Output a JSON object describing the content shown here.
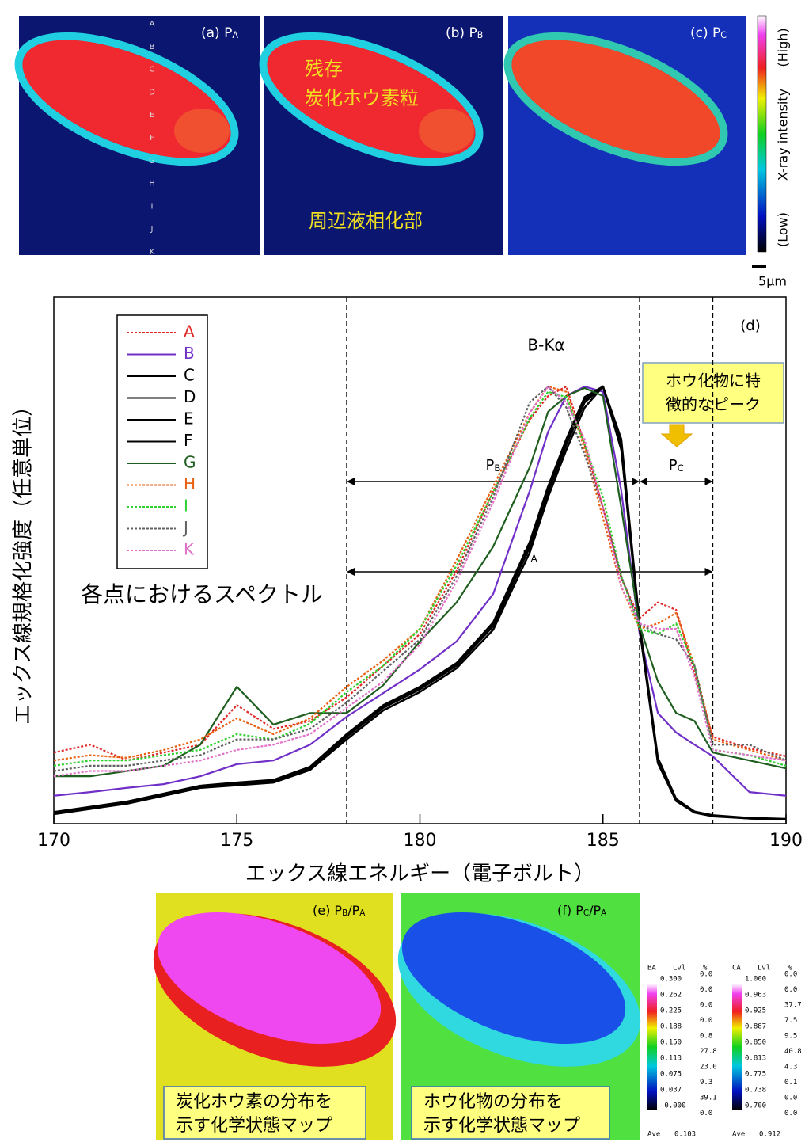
{
  "chart_data": {
    "type": "line",
    "xlabel": "エックス線エネルギー（電子ボルト）",
    "ylabel": "エックス線規格化強度（任意単位）",
    "panel_label": "(d)",
    "x": [
      170,
      171,
      172,
      173,
      174,
      175,
      176,
      177,
      178,
      179,
      180,
      181,
      182,
      183,
      183.5,
      184,
      184.5,
      185,
      185.5,
      186,
      186.5,
      187,
      187.5,
      188,
      189,
      190
    ],
    "xlim": [
      170,
      190
    ],
    "xticks": [
      170,
      175,
      180,
      185,
      190
    ],
    "ylim": [
      0,
      1
    ],
    "legend": "upper-left",
    "series": [
      {
        "name": "A",
        "color": "#e02828",
        "style": "dotted",
        "values": [
          0.135,
          0.15,
          0.12,
          0.135,
          0.15,
          0.225,
          0.18,
          0.195,
          0.24,
          0.3,
          0.36,
          0.48,
          0.63,
          0.767,
          0.812,
          0.83,
          0.72,
          0.6,
          0.466,
          0.39,
          0.42,
          0.406,
          0.286,
          0.165,
          0.143,
          0.128
        ]
      },
      {
        "name": "B",
        "color": "#7030c8",
        "style": "solid",
        "values": [
          0.053,
          0.06,
          0.068,
          0.075,
          0.09,
          0.113,
          0.12,
          0.15,
          0.203,
          0.248,
          0.293,
          0.346,
          0.436,
          0.632,
          0.744,
          0.812,
          0.83,
          0.82,
          0.632,
          0.361,
          0.21,
          0.173,
          0.15,
          0.128,
          0.06,
          0.053
        ]
      },
      {
        "name": "C",
        "color": "#000000",
        "style": "solid",
        "values": [
          0.02,
          0.03,
          0.04,
          0.055,
          0.07,
          0.075,
          0.08,
          0.105,
          0.165,
          0.22,
          0.255,
          0.3,
          0.375,
          0.525,
          0.63,
          0.72,
          0.8,
          0.83,
          0.72,
          0.375,
          0.12,
          0.045,
          0.022,
          0.015,
          0.01,
          0.008
        ]
      },
      {
        "name": "D",
        "color": "#000000",
        "style": "solid",
        "values": [
          0.022,
          0.032,
          0.042,
          0.057,
          0.072,
          0.078,
          0.083,
          0.108,
          0.17,
          0.225,
          0.26,
          0.305,
          0.382,
          0.535,
          0.64,
          0.73,
          0.81,
          0.83,
          0.71,
          0.37,
          0.115,
          0.043,
          0.021,
          0.014,
          0.01,
          0.008
        ]
      },
      {
        "name": "E",
        "color": "#000000",
        "style": "solid",
        "values": [
          0.018,
          0.028,
          0.038,
          0.053,
          0.068,
          0.073,
          0.078,
          0.102,
          0.16,
          0.215,
          0.25,
          0.295,
          0.368,
          0.515,
          0.62,
          0.71,
          0.79,
          0.83,
          0.73,
          0.38,
          0.125,
          0.047,
          0.023,
          0.016,
          0.011,
          0.009
        ]
      },
      {
        "name": "F",
        "color": "#000000",
        "style": "solid",
        "values": [
          0.021,
          0.031,
          0.041,
          0.056,
          0.071,
          0.076,
          0.081,
          0.106,
          0.167,
          0.222,
          0.257,
          0.302,
          0.378,
          0.53,
          0.635,
          0.725,
          0.805,
          0.83,
          0.715,
          0.372,
          0.118,
          0.044,
          0.022,
          0.015,
          0.01,
          0.008
        ]
      },
      {
        "name": "G",
        "color": "#1e5e1e",
        "style": "solid",
        "values": [
          0.09,
          0.09,
          0.1,
          0.11,
          0.15,
          0.26,
          0.188,
          0.21,
          0.21,
          0.263,
          0.346,
          0.42,
          0.526,
          0.677,
          0.782,
          0.812,
          0.827,
          0.812,
          0.6,
          0.376,
          0.27,
          0.21,
          0.195,
          0.135,
          0.12,
          0.105
        ]
      },
      {
        "name": "H",
        "color": "#e86010",
        "style": "dotted",
        "values": [
          0.12,
          0.13,
          0.125,
          0.14,
          0.16,
          0.2,
          0.17,
          0.2,
          0.26,
          0.31,
          0.37,
          0.5,
          0.64,
          0.78,
          0.83,
          0.82,
          0.71,
          0.58,
          0.45,
          0.37,
          0.38,
          0.4,
          0.3,
          0.16,
          0.14,
          0.12
        ]
      },
      {
        "name": "I",
        "color": "#30d030",
        "style": "dotted",
        "values": [
          0.11,
          0.12,
          0.12,
          0.13,
          0.14,
          0.17,
          0.16,
          0.19,
          0.25,
          0.3,
          0.37,
          0.49,
          0.63,
          0.77,
          0.82,
          0.81,
          0.72,
          0.62,
          0.47,
          0.37,
          0.36,
          0.38,
          0.3,
          0.14,
          0.13,
          0.11
        ]
      },
      {
        "name": "J",
        "color": "#606060",
        "style": "dotted",
        "values": [
          0.1,
          0.11,
          0.11,
          0.12,
          0.13,
          0.16,
          0.16,
          0.18,
          0.23,
          0.29,
          0.35,
          0.47,
          0.62,
          0.8,
          0.83,
          0.79,
          0.7,
          0.6,
          0.47,
          0.38,
          0.36,
          0.35,
          0.3,
          0.15,
          0.15,
          0.12
        ]
      },
      {
        "name": "K",
        "color": "#e070c8",
        "style": "dotted",
        "values": [
          0.09,
          0.1,
          0.1,
          0.11,
          0.12,
          0.14,
          0.15,
          0.17,
          0.22,
          0.27,
          0.34,
          0.46,
          0.61,
          0.78,
          0.83,
          0.8,
          0.73,
          0.6,
          0.45,
          0.38,
          0.37,
          0.37,
          0.28,
          0.14,
          0.13,
          0.12
        ]
      }
    ],
    "annotations": {
      "peak": "B-Kα",
      "spectra": "各点におけるスペクトル",
      "callout": [
        "ホウ化物に特",
        "徴的なピーク"
      ]
    },
    "ranges": [
      {
        "name": "P",
        "sub": "B",
        "x": [
          178,
          186
        ]
      },
      {
        "name": "P",
        "sub": "C",
        "x": [
          186,
          188
        ]
      },
      {
        "name": "P",
        "sub": "A",
        "x": [
          178,
          188
        ]
      }
    ]
  },
  "top_maps": [
    {
      "tag": "(a) P",
      "sub": "A"
    },
    {
      "tag": "(b) P",
      "sub": "B"
    },
    {
      "tag": "(c) P",
      "sub": "C"
    }
  ],
  "points": [
    "A",
    "B",
    "C",
    "D",
    "E",
    "F",
    "G",
    "H",
    "I",
    "J",
    "K"
  ],
  "map_b_labels": [
    "残存",
    "炭化ホウ素粒",
    "周辺液相化部"
  ],
  "colorbar": {
    "high": "(High)",
    "title": "X-ray intensity",
    "low": "(Low)"
  },
  "scale_bar": "5μm",
  "ratio_maps": [
    {
      "tag": "(e) P",
      "sub1": "B",
      "slash": "/P",
      "sub2": "A",
      "caption": [
        "炭化ホウ素の分布を",
        "示す化学状態マップ"
      ],
      "scale": {
        "name": "BA",
        "lvl": "Lvl",
        "pct": "%",
        "levels": [
          "0.300",
          "0.262",
          "0.225",
          "0.188",
          "0.150",
          "0.113",
          "0.075",
          "0.037",
          "-0.000"
        ],
        "percents": [
          "0.0",
          "0.0",
          "0.0",
          "0.0",
          "0.8",
          "27.8",
          "23.0",
          "9.3",
          "39.1",
          "0.0"
        ],
        "ave_label": "Ave",
        "ave": "0.103"
      }
    },
    {
      "tag": "(f) P",
      "sub1": "C",
      "slash": "/P",
      "sub2": "A",
      "caption": [
        "ホウ化物の分布を",
        "示す化学状態マップ"
      ],
      "scale": {
        "name": "CA",
        "lvl": "Lvl",
        "pct": "%",
        "levels": [
          "1.000",
          "0.963",
          "0.925",
          "0.887",
          "0.850",
          "0.813",
          "0.775",
          "0.738",
          "0.700"
        ],
        "percents": [
          "0.0",
          "0.0",
          "37.7",
          "7.5",
          "9.5",
          "40.8",
          "4.3",
          "0.1",
          "0.0",
          "0.0"
        ],
        "ave_label": "Ave",
        "ave": "0.912"
      }
    }
  ]
}
